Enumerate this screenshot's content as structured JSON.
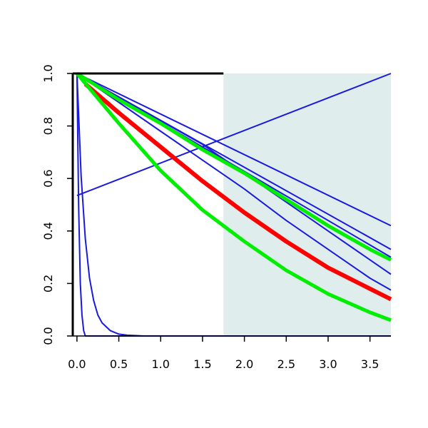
{
  "chart_data": {
    "type": "line",
    "title": "",
    "xlabel": "",
    "ylabel": "",
    "xlim": [
      -0.05,
      3.75
    ],
    "ylim": [
      0.0,
      1.0
    ],
    "grid": false,
    "legend": "none",
    "x_ticks": [
      "0.0",
      "0.5",
      "1.0",
      "1.5",
      "2.0",
      "2.5",
      "3.0",
      "3.5"
    ],
    "y_ticks": [
      "0.0",
      "0.2",
      "0.4",
      "0.6",
      "0.8",
      "1.0"
    ],
    "shaded_region": {
      "x_start": 1.75,
      "x_end": 3.75,
      "color": "#e0eded"
    },
    "colors": {
      "blue": "#1a1adf",
      "red": "#ff0000",
      "green": "#00ee00",
      "axis": "#000000"
    },
    "series": [
      {
        "color": "blue",
        "width": 2,
        "x": [
          0,
          3.75
        ],
        "y": [
          1.0,
          0.42
        ]
      },
      {
        "color": "blue",
        "width": 2,
        "x": [
          0,
          3.75
        ],
        "y": [
          1.0,
          0.33
        ]
      },
      {
        "color": "blue",
        "width": 2,
        "x": [
          0,
          3.75
        ],
        "y": [
          1.0,
          0.3
        ]
      },
      {
        "color": "blue",
        "width": 2,
        "x": [
          0,
          0.5,
          1.0,
          1.5,
          2.0,
          2.5,
          3.0,
          3.5,
          3.75
        ],
        "y": [
          1.0,
          0.91,
          0.82,
          0.73,
          0.62,
          0.51,
          0.4,
          0.29,
          0.235
        ]
      },
      {
        "color": "blue",
        "width": 2,
        "x": [
          0,
          0.5,
          1.0,
          1.5,
          2.0,
          2.5,
          3.0,
          3.5,
          3.75
        ],
        "y": [
          1.0,
          0.89,
          0.78,
          0.67,
          0.56,
          0.44,
          0.33,
          0.22,
          0.175
        ]
      },
      {
        "color": "blue",
        "width": 2,
        "x": [
          0,
          3.75
        ],
        "y": [
          0.535,
          1.0
        ]
      },
      {
        "color": "blue",
        "width": 2,
        "x": [
          0,
          0.05,
          0.1,
          0.15,
          0.2,
          0.25,
          0.3,
          0.4,
          0.5,
          0.6,
          0.8,
          1.0,
          3.75
        ],
        "y": [
          1.0,
          0.61,
          0.37,
          0.22,
          0.135,
          0.08,
          0.05,
          0.02,
          0.007,
          0.003,
          0.0,
          0.0,
          0.0
        ]
      },
      {
        "color": "blue",
        "width": 2,
        "x": [
          0,
          0.02,
          0.04,
          0.06,
          0.08,
          0.1,
          3.75
        ],
        "y": [
          1.0,
          0.5,
          0.2,
          0.08,
          0.02,
          0.0,
          0.0
        ]
      },
      {
        "color": "green",
        "width": 5,
        "x": [
          0,
          0.5,
          1.0,
          1.5,
          2.0,
          2.5,
          3.0,
          3.5,
          3.75
        ],
        "y": [
          1.0,
          0.9,
          0.81,
          0.71,
          0.62,
          0.52,
          0.42,
          0.33,
          0.29
        ]
      },
      {
        "color": "red",
        "width": 6,
        "x": [
          0.1,
          0.5,
          1.0,
          1.5,
          2.0,
          2.5,
          3.0,
          3.5,
          3.75
        ],
        "y": [
          0.96,
          0.85,
          0.72,
          0.59,
          0.47,
          0.36,
          0.26,
          0.18,
          0.14
        ]
      },
      {
        "color": "green",
        "width": 5,
        "x": [
          0,
          0.5,
          1.0,
          1.5,
          2.0,
          2.5,
          3.0,
          3.5,
          3.75
        ],
        "y": [
          1.0,
          0.81,
          0.63,
          0.48,
          0.36,
          0.25,
          0.16,
          0.09,
          0.06
        ]
      }
    ]
  }
}
